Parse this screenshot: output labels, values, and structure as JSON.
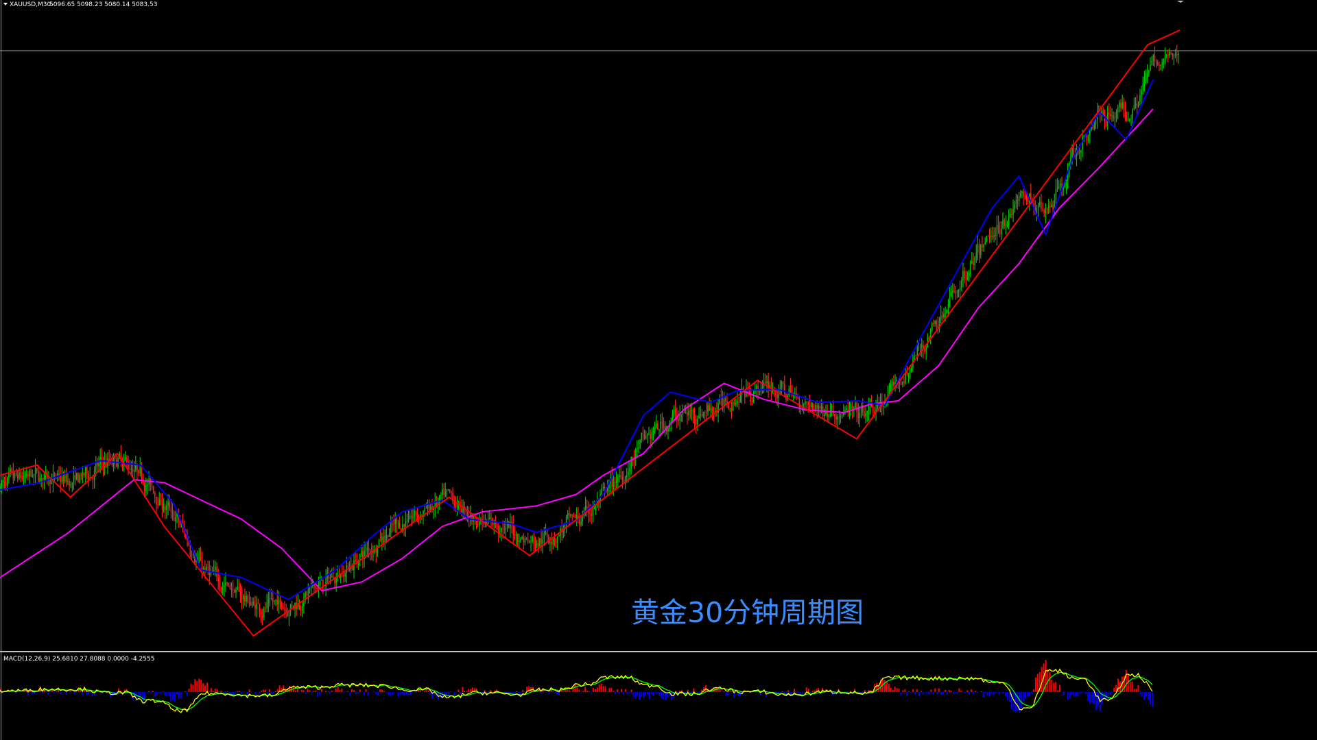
{
  "header": {
    "symbol": "XAUUSD,M30",
    "ohlc": "5096.65 5098.23 5080.14 5083.53"
  },
  "annotation": "黄金30分钟周期图",
  "indicator": {
    "label": "MACD(12,26,9) 25.6810 27.8088 0.0000 -4.2555"
  },
  "colors": {
    "background": "#000000",
    "bull": "#00c000",
    "bear": "#ff2020",
    "fast_ma": "#0000ff",
    "slow_ma": "#ff00ff",
    "zigzag": "#ff0000",
    "macd_line": "#ffff00",
    "signal_line": "#00ff00",
    "hist_pos": "#ff0000",
    "hist_neg": "#0000ff",
    "current_price": "#a0a0a0",
    "annotation": "#3a8dff"
  },
  "chart_data": {
    "type": "candlestick",
    "symbol": "XAUUSD",
    "timeframe": "M30",
    "current_price": 5083.53,
    "price_range": [
      4715,
      5130
    ],
    "series": [
      {
        "name": "zigzag",
        "type": "line",
        "x": [
          0,
          55,
          105,
          175,
          245,
          378,
          670,
          790,
          1130,
          1278,
          1712,
          1760
        ],
        "y": [
          4825,
          4832,
          4810,
          4840,
          4790,
          4715,
          4810,
          4770,
          4890,
          4850,
          5120,
          5130
        ]
      },
      {
        "name": "fast_ma",
        "type": "line",
        "x": [
          0,
          60,
          150,
          210,
          260,
          300,
          360,
          430,
          500,
          560,
          600,
          660,
          700,
          760,
          800,
          860,
          900,
          960,
          1000,
          1060,
          1100,
          1160,
          1220,
          1280,
          1320,
          1380,
          1440,
          1480,
          1520,
          1560,
          1600,
          1640,
          1680,
          1720
        ],
        "y": [
          4815,
          4820,
          4835,
          4832,
          4805,
          4760,
          4755,
          4740,
          4760,
          4785,
          4800,
          4808,
          4795,
          4792,
          4786,
          4794,
          4812,
          4866,
          4882,
          4875,
          4883,
          4884,
          4875,
          4876,
          4873,
          4925,
          4975,
          5008,
          5030,
          4990,
          5042,
          5074,
          5055,
          5096
        ]
      },
      {
        "name": "slow_ma",
        "type": "line",
        "x": [
          0,
          100,
          200,
          245,
          300,
          360,
          420,
          480,
          540,
          600,
          660,
          720,
          800,
          860,
          900,
          960,
          1020,
          1080,
          1140,
          1200,
          1260,
          1300,
          1340,
          1400,
          1460,
          1520,
          1580,
          1640,
          1720
        ],
        "y": [
          4755,
          4785,
          4822,
          4820,
          4808,
          4795,
          4775,
          4746,
          4752,
          4768,
          4790,
          4800,
          4804,
          4812,
          4825,
          4840,
          4870,
          4888,
          4877,
          4870,
          4868,
          4874,
          4876,
          4900,
          4940,
          4970,
          5008,
          5036,
          5076
        ]
      }
    ],
    "macd": {
      "label": "MACD(12,26,9)",
      "values": [
        25.681,
        27.8088,
        0.0,
        -4.2555
      ]
    }
  }
}
